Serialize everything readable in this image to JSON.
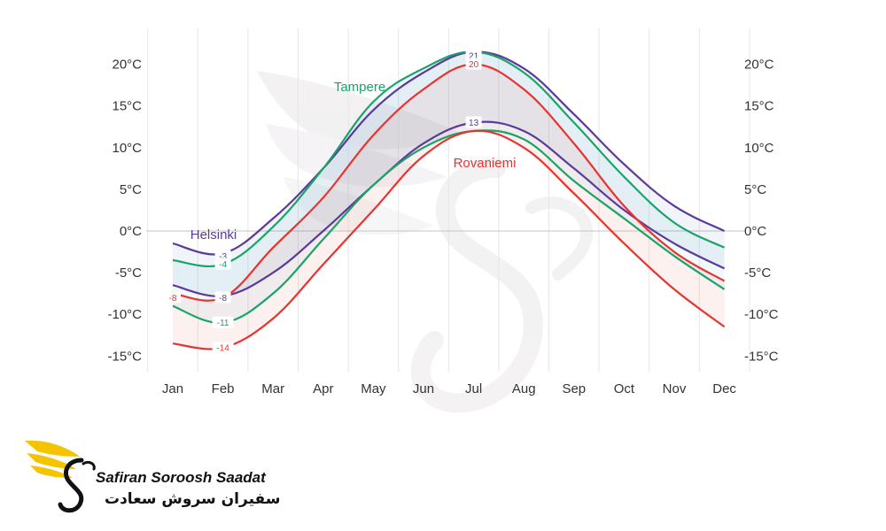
{
  "chart_data": {
    "type": "line",
    "title": "",
    "xlabel": "",
    "ylabel": "",
    "categories": [
      "Jan",
      "Feb",
      "Mar",
      "Apr",
      "May",
      "Jun",
      "Jul",
      "Aug",
      "Sep",
      "Oct",
      "Nov",
      "Dec"
    ],
    "y_ticks": [
      "20°C",
      "15°C",
      "10°C",
      "5°C",
      "0°C",
      "-5°C",
      "-10°C",
      "-15°C"
    ],
    "ylim": [
      -17.5,
      23.5
    ],
    "grid": "vertical",
    "series": [
      {
        "name": "Helsinki",
        "color": "#5b3a9b",
        "high": [
          -1.5,
          -2.7,
          1.5,
          7.5,
          14.5,
          19.0,
          21.5,
          19.5,
          14.0,
          8.0,
          3.0,
          0.0
        ],
        "low": [
          -6.5,
          -7.8,
          -5.0,
          0.0,
          5.5,
          10.5,
          13.0,
          12.0,
          7.5,
          2.5,
          -1.5,
          -4.5
        ]
      },
      {
        "name": "Tampere",
        "color": "#1aa36a",
        "high": [
          -3.5,
          -4.0,
          0.5,
          7.5,
          15.5,
          19.5,
          21.5,
          19.0,
          13.0,
          6.5,
          1.0,
          -2.0
        ],
        "low": [
          -9.0,
          -11.0,
          -7.5,
          -1.0,
          5.5,
          10.0,
          12.0,
          11.0,
          6.0,
          1.5,
          -3.0,
          -7.0
        ]
      },
      {
        "name": "Rovaniemi",
        "color": "#e8332f",
        "high": [
          -7.5,
          -8.0,
          -2.0,
          4.0,
          11.5,
          17.0,
          20.0,
          17.0,
          10.5,
          3.0,
          -2.5,
          -6.0
        ],
        "low": [
          -13.5,
          -14.0,
          -10.5,
          -4.0,
          2.5,
          9.0,
          12.0,
          10.0,
          4.5,
          -1.5,
          -7.0,
          -11.5
        ]
      }
    ],
    "point_labels": [
      {
        "series": "Helsinki",
        "month": 1,
        "value": -3,
        "text": "-3"
      },
      {
        "series": "Helsinki",
        "month": 1,
        "value": -8,
        "text": "-8"
      },
      {
        "series": "Helsinki",
        "month": 6,
        "value": 21,
        "text": "21"
      },
      {
        "series": "Helsinki",
        "month": 6,
        "value": 13,
        "text": "13"
      },
      {
        "series": "Tampere",
        "month": 1,
        "value": -4,
        "text": "-4"
      },
      {
        "series": "Tampere",
        "month": 1,
        "value": -11,
        "text": "-11"
      },
      {
        "series": "Rovaniemi",
        "month": 0,
        "value": -8,
        "text": "-8"
      },
      {
        "series": "Rovaniemi",
        "month": 1,
        "value": -14,
        "text": "-14"
      },
      {
        "series": "Rovaniemi",
        "month": 6,
        "value": 20,
        "text": "20"
      }
    ],
    "series_labels": [
      {
        "series": "Tampere",
        "text": "Tampere"
      },
      {
        "series": "Helsinki",
        "text": "Helsinki"
      },
      {
        "series": "Rovaniemi",
        "text": "Rovaniemi"
      }
    ]
  },
  "brand": {
    "name_en": "Safiran Soroosh Saadat",
    "name_fa": "سفیران سروش سعادت",
    "logo_icon": "winged-s-logo-icon",
    "logo_color": "#f5c400"
  },
  "watermark": {
    "icon": "winged-s-watermark-icon"
  }
}
